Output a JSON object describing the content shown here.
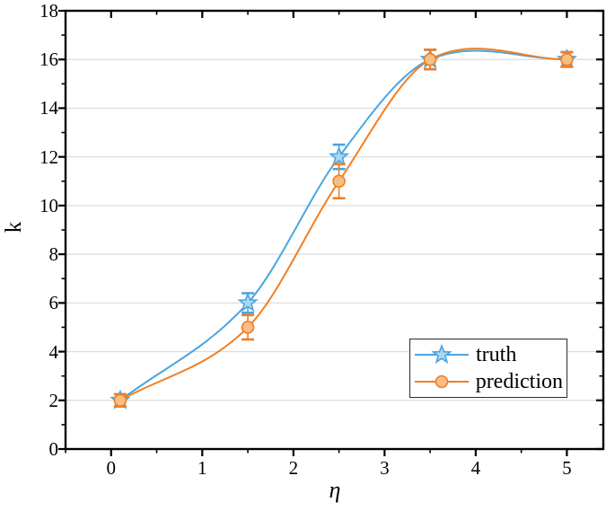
{
  "chart_data": {
    "type": "line",
    "title": "",
    "xlabel": "η",
    "ylabel": "k",
    "x": [
      0.1,
      1.5,
      2.5,
      3.5,
      5
    ],
    "series": [
      {
        "name": "truth",
        "marker": "star",
        "values": [
          2,
          6,
          12,
          16,
          16
        ],
        "errors": [
          0.25,
          0.4,
          0.5,
          0.4,
          0.3
        ],
        "color": "#4AA5E0",
        "marker_fill": "#A9D7F2"
      },
      {
        "name": "prediction",
        "marker": "circle",
        "values": [
          2,
          5,
          11,
          16,
          16
        ],
        "errors": [
          0.25,
          0.5,
          0.7,
          0.4,
          0.3
        ],
        "color": "#F17E22",
        "marker_fill": "#F8BE85"
      }
    ],
    "xlim": [
      -0.5,
      5.4
    ],
    "ylim": [
      0,
      18
    ],
    "x_major_ticks": [
      0,
      1,
      2,
      3,
      4,
      5
    ],
    "x_minor_step": 0.5,
    "y_major_ticks": [
      0,
      2,
      4,
      6,
      8,
      10,
      12,
      14,
      16,
      18
    ],
    "y_minor_step": 1,
    "grid": "horizontal",
    "grid_color": "#DBDBDB",
    "axis_color": "#000000",
    "curve": "smooth-spline",
    "legend": {
      "position": "inside-lower-right",
      "entries": [
        "truth",
        "prediction"
      ]
    }
  }
}
